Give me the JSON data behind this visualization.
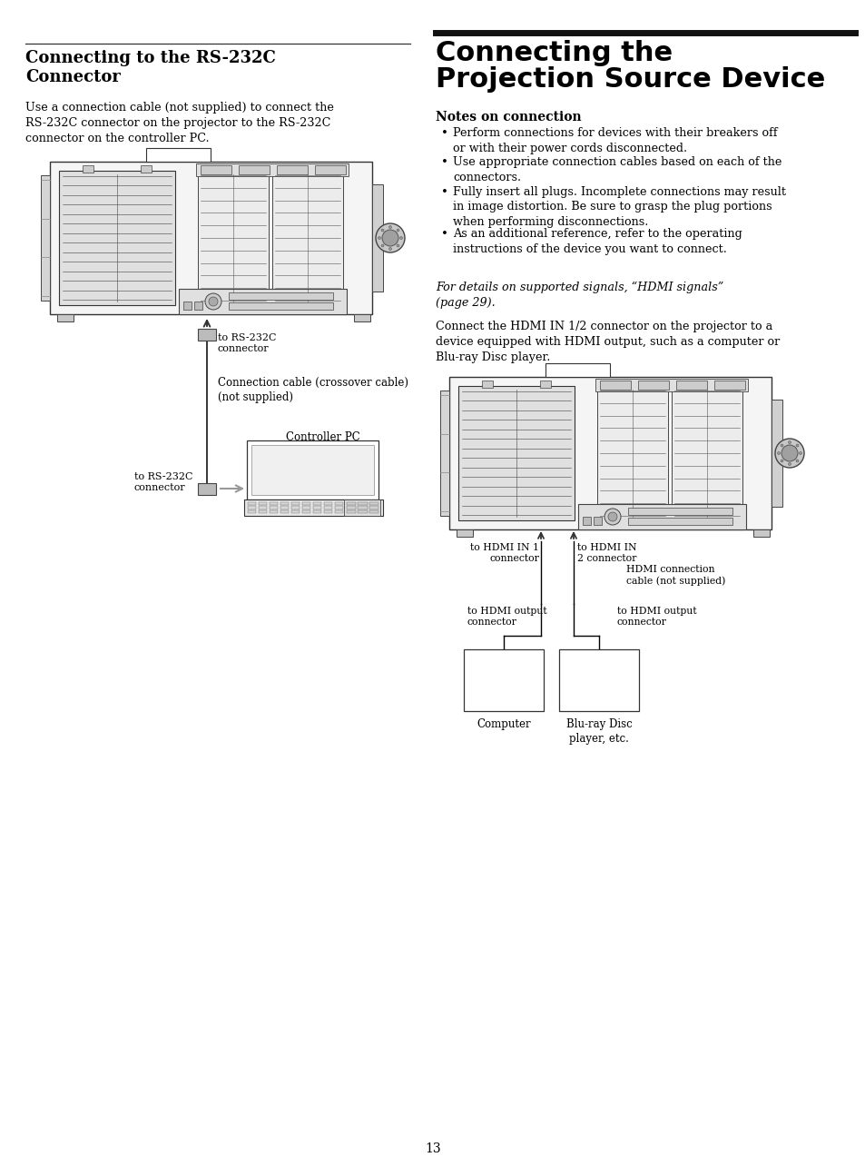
{
  "bg_color": "#ffffff",
  "page_number": "13",
  "left_title": "Connecting to the RS-232C\nConnector",
  "left_body": "Use a connection cable (not supplied) to connect the\nRS-232C connector on the projector to the RS-232C\nconnector on the controller PC.",
  "left_label1": "to RS-232C\nconnector",
  "left_label2": "Connection cable (crossover cable)\n(not supplied)",
  "left_label3": "Controller PC",
  "left_label4": "to RS-232C\nconnector",
  "right_title_line1": "Connecting the",
  "right_title_line2": "Projection Source Device",
  "notes_title": "Notes on connection",
  "bullet1": "Perform connections for devices with their breakers off\nor with their power cords disconnected.",
  "bullet2": "Use appropriate connection cables based on each of the\nconnectors.",
  "bullet3": "Fully insert all plugs. Incomplete connections may result\nin image distortion. Be sure to grasp the plug portions\nwhen performing disconnections.",
  "bullet4": "As an additional reference, refer to the operating\ninstructions of the device you want to connect.",
  "italic_note": "For details on supported signals, “HDMI signals”\n(page 29).",
  "right_body": "Connect the HDMI IN 1/2 connector on the projector to a\ndevice equipped with HDMI output, such as a computer or\nBlu-ray Disc player.",
  "label_hdmi1": "to HDMI IN 1\nconnector",
  "label_hdmi2": "to HDMI IN\n2 connector",
  "label_hdmi_cable": "HDMI connection\ncable (not supplied)",
  "label_hdmi_out1": "to HDMI output\nconnector",
  "label_hdmi_out2": "to HDMI output\nconnector",
  "label_computer": "Computer",
  "label_bluray": "Blu-ray Disc\nplayer, etc."
}
